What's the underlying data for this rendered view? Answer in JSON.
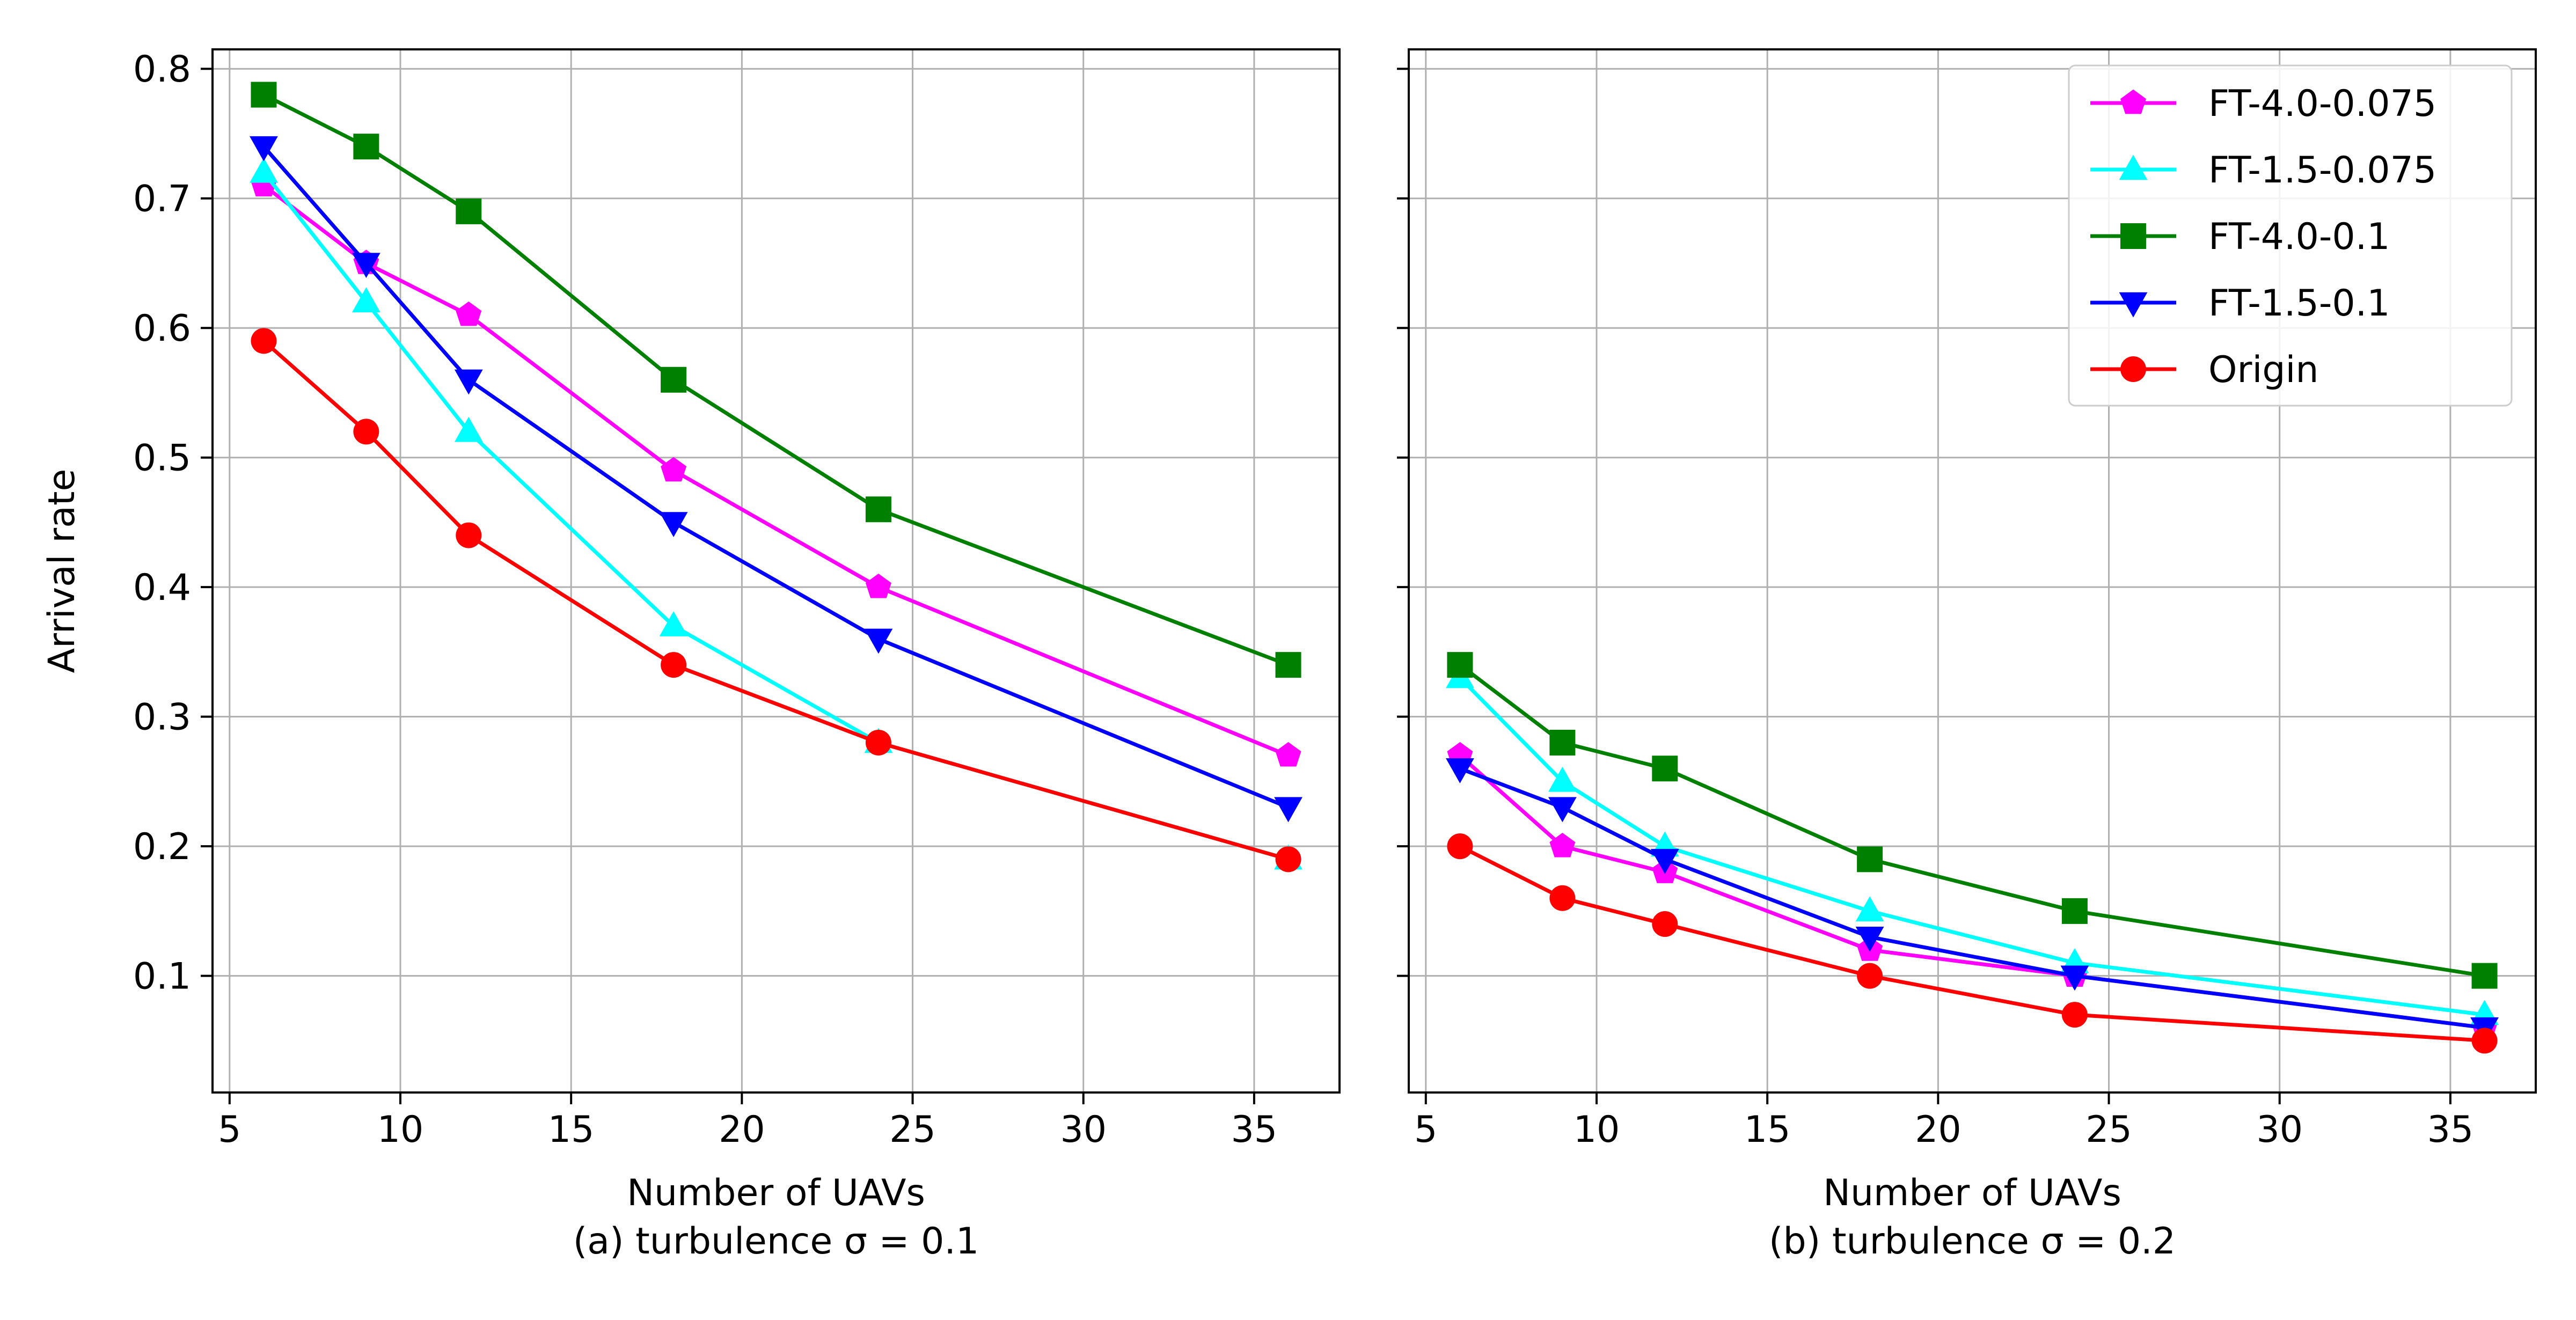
{
  "figure": {
    "shared_ylabel": "Arrival rate"
  },
  "chart_data": [
    {
      "type": "line",
      "xlabel": "Number of UAVs",
      "caption": "(a) turbulence σ = 0.1",
      "ylabel": "Arrival rate",
      "x": [
        6,
        9,
        12,
        18,
        24,
        36
      ],
      "xlim": [
        4.5,
        37.5
      ],
      "ylim": [
        0.01,
        0.815
      ],
      "xticks": [
        5,
        10,
        15,
        20,
        25,
        30,
        35
      ],
      "yticks": [
        0.1,
        0.2,
        0.3,
        0.4,
        0.5,
        0.6,
        0.7,
        0.8
      ],
      "grid": true,
      "series": [
        {
          "name": "FT-4.0-0.075",
          "color": "#ff00ff",
          "marker": "pentagon",
          "values": [
            0.71,
            0.65,
            0.61,
            0.49,
            0.4,
            0.27
          ]
        },
        {
          "name": "FT-1.5-0.075",
          "color": "#00ffff",
          "marker": "triangle-up",
          "values": [
            0.72,
            0.62,
            0.52,
            0.37,
            0.28,
            0.19
          ]
        },
        {
          "name": "FT-4.0-0.1",
          "color": "#008000",
          "marker": "square",
          "values": [
            0.78,
            0.74,
            0.69,
            0.56,
            0.46,
            0.34
          ]
        },
        {
          "name": "FT-1.5-0.1",
          "color": "#0000ff",
          "marker": "triangle-down",
          "values": [
            0.74,
            0.65,
            0.56,
            0.45,
            0.36,
            0.23
          ]
        },
        {
          "name": "Origin",
          "color": "#ff0000",
          "marker": "circle",
          "values": [
            0.59,
            0.52,
            0.44,
            0.34,
            0.28,
            0.19
          ]
        }
      ]
    },
    {
      "type": "line",
      "xlabel": "Number of UAVs",
      "caption": "(b) turbulence σ = 0.2",
      "ylabel": "",
      "x": [
        6,
        9,
        12,
        18,
        24,
        36
      ],
      "xlim": [
        4.5,
        37.5
      ],
      "ylim": [
        0.01,
        0.815
      ],
      "xticks": [
        5,
        10,
        15,
        20,
        25,
        30,
        35
      ],
      "yticks": [
        0.1,
        0.2,
        0.3,
        0.4,
        0.5,
        0.6,
        0.7,
        0.8
      ],
      "grid": true,
      "legend_position": "top-right",
      "series": [
        {
          "name": "FT-4.0-0.075",
          "color": "#ff00ff",
          "marker": "pentagon",
          "values": [
            0.27,
            0.2,
            0.18,
            0.12,
            0.1,
            0.06
          ]
        },
        {
          "name": "FT-1.5-0.075",
          "color": "#00ffff",
          "marker": "triangle-up",
          "values": [
            0.33,
            0.25,
            0.2,
            0.15,
            0.11,
            0.07
          ]
        },
        {
          "name": "FT-4.0-0.1",
          "color": "#008000",
          "marker": "square",
          "values": [
            0.34,
            0.28,
            0.26,
            0.19,
            0.15,
            0.1
          ]
        },
        {
          "name": "FT-1.5-0.1",
          "color": "#0000ff",
          "marker": "triangle-down",
          "values": [
            0.26,
            0.23,
            0.19,
            0.13,
            0.1,
            0.06
          ]
        },
        {
          "name": "Origin",
          "color": "#ff0000",
          "marker": "circle",
          "values": [
            0.2,
            0.16,
            0.14,
            0.1,
            0.07,
            0.05
          ]
        }
      ]
    }
  ]
}
